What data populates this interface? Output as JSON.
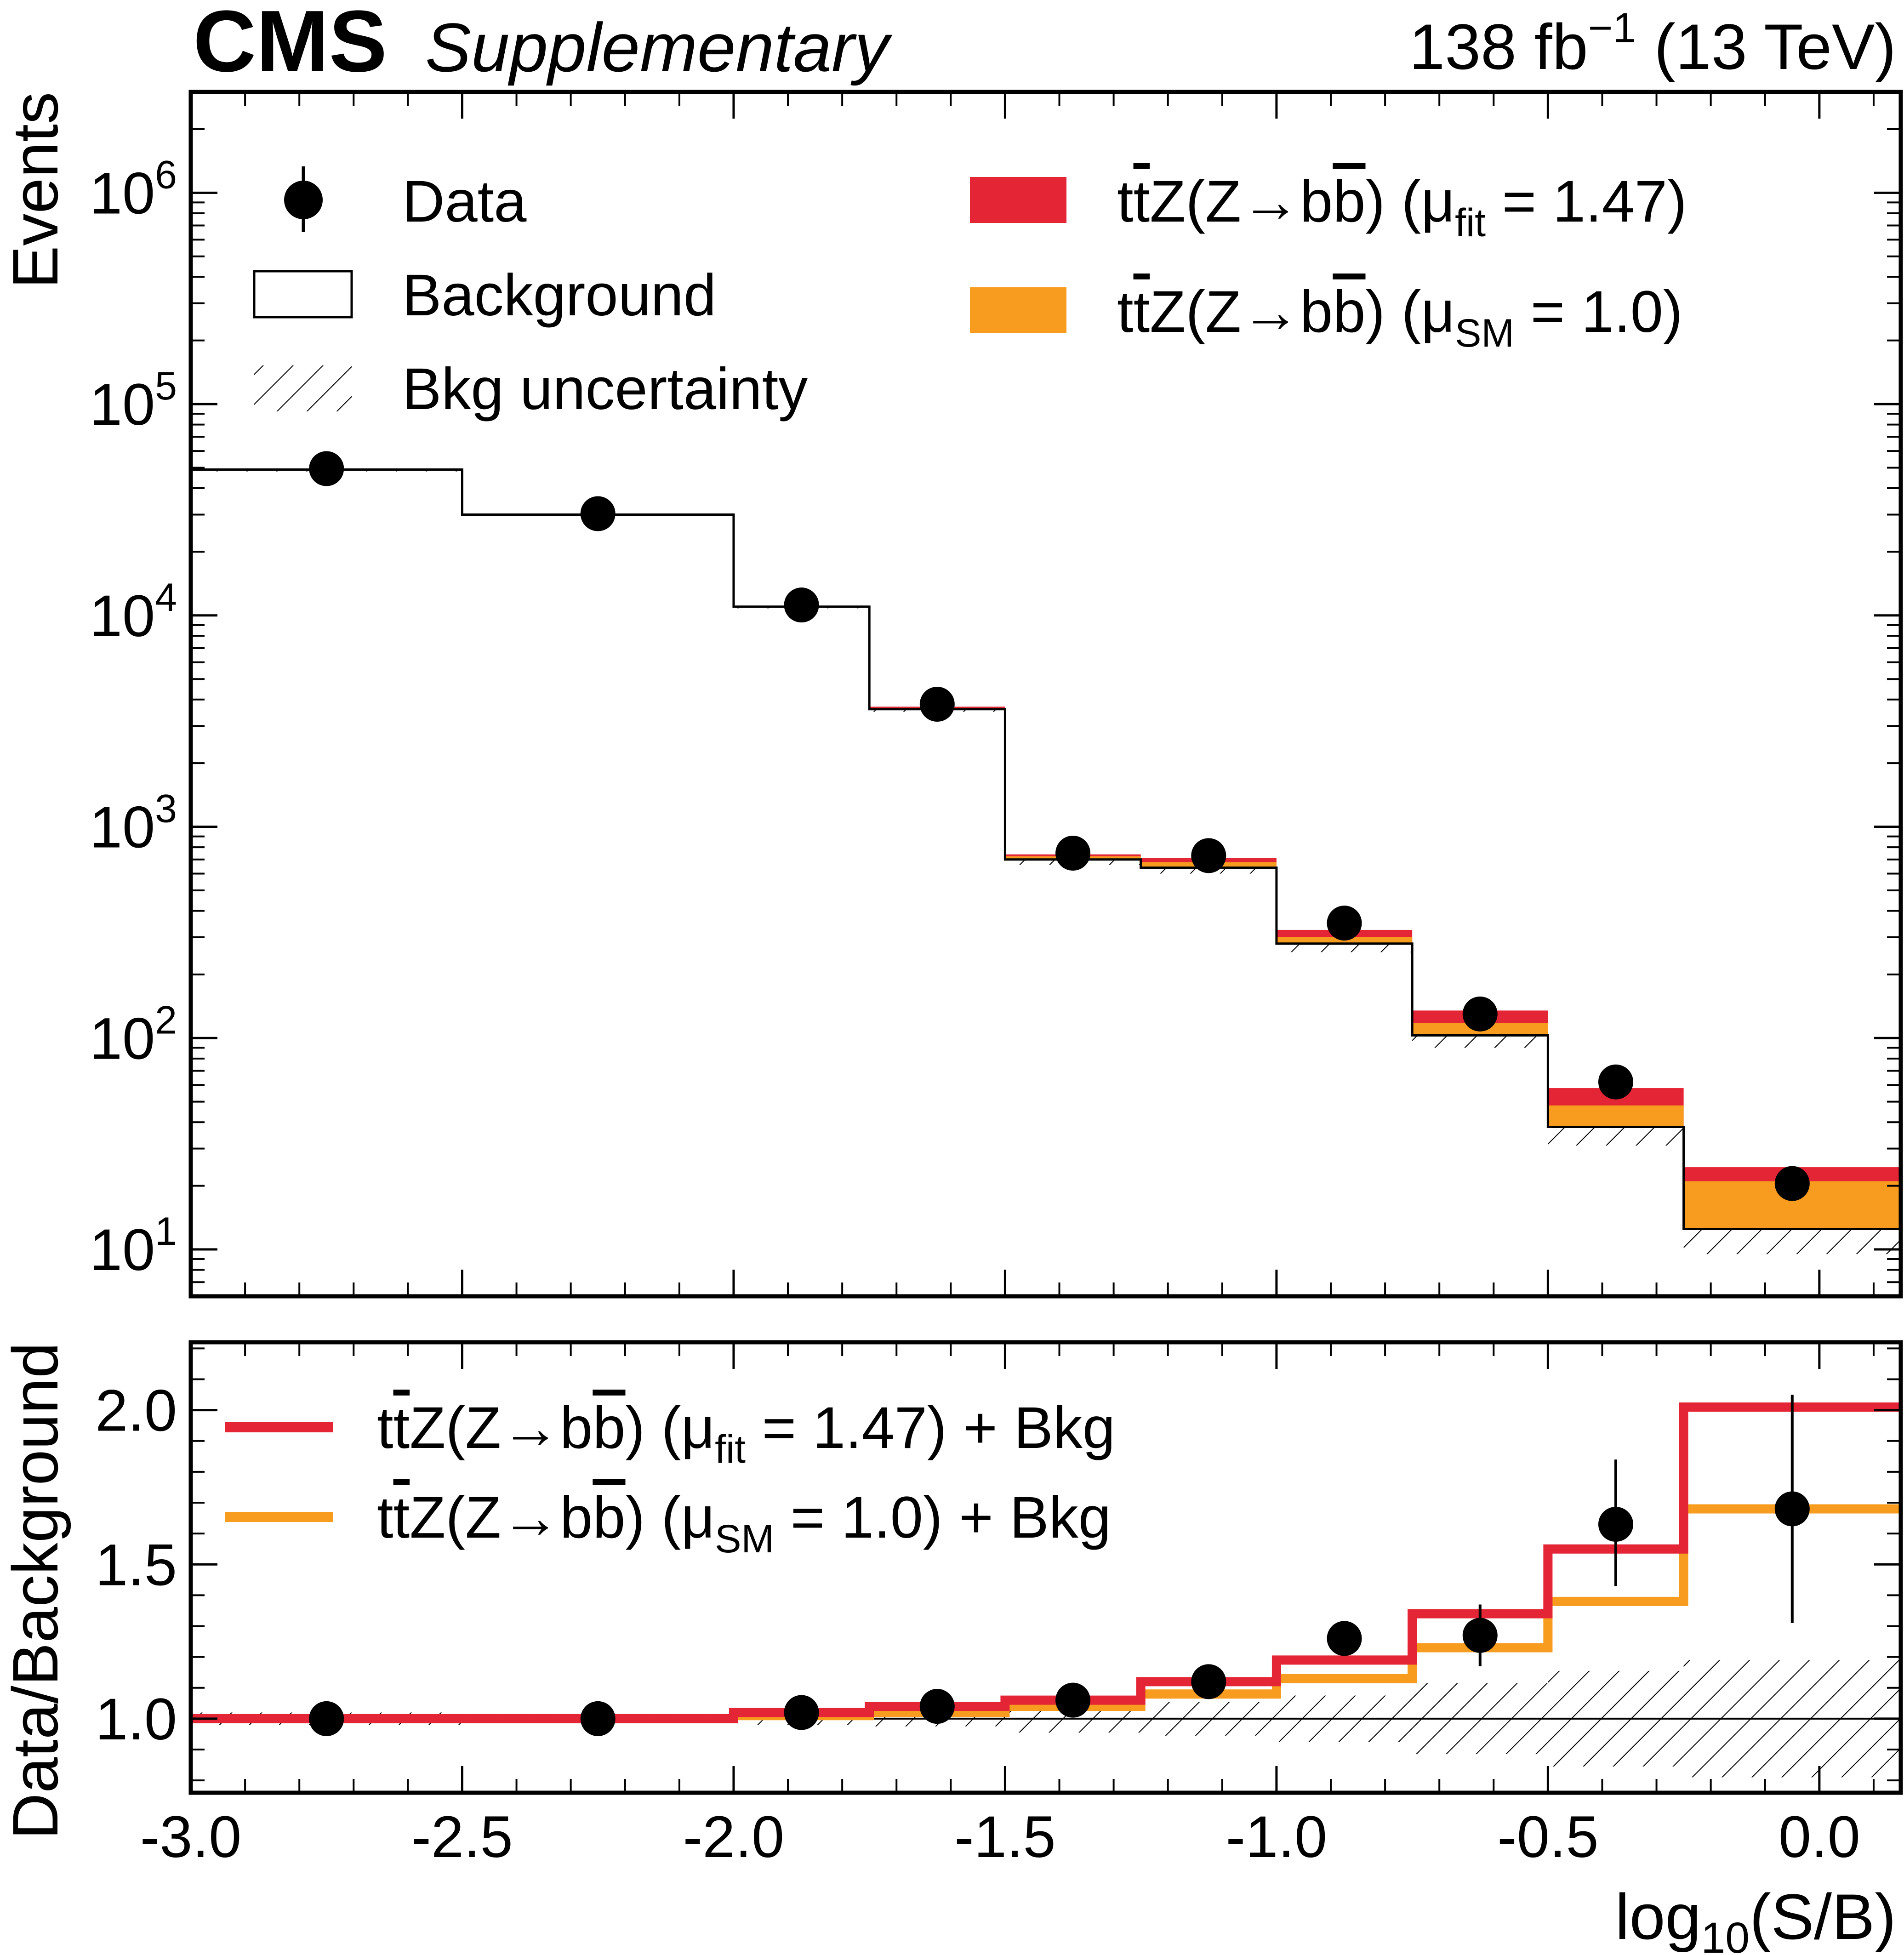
{
  "header": {
    "experiment": "CMS",
    "tag": "Supplementary",
    "lumi_value": "138 fb",
    "lumi_exp": "−1",
    "energy": " (13 TeV)"
  },
  "legend_main": {
    "data": "Data",
    "background": "Background",
    "bkg_unc": "Bkg uncertainty",
    "sig_fit": {
      "lead": "t",
      "tbar": "t",
      "proc": "Z(Z→b",
      "bbar": "b",
      "tail": ") (μ",
      "sub": "fit",
      "val": " = 1.47)"
    },
    "sig_sm": {
      "lead": "t",
      "tbar": "t",
      "proc": "Z(Z→b",
      "bbar": "b",
      "tail": ") (μ",
      "sub": "SM",
      "val": " = 1.0)"
    }
  },
  "legend_ratio": {
    "fit": {
      "lead": "t",
      "tbar": "t",
      "proc": "Z(Z→b",
      "bbar": "b",
      "tail": ") (μ",
      "sub": "fit",
      "val": " = 1.47) + Bkg"
    },
    "sm": {
      "lead": "t",
      "tbar": "t",
      "proc": "Z(Z→b",
      "bbar": "b",
      "tail": ") (μ",
      "sub": "SM",
      "val": " = 1.0) + Bkg"
    }
  },
  "colors": {
    "fit": "#e42536",
    "sm": "#f89c20",
    "axis": "#000000"
  },
  "chart_data": {
    "type": "bar",
    "xlabel": {
      "base": "log",
      "sub": "10",
      "rest": "(S/B)"
    },
    "ylabel_main": "Events",
    "ylabel_ratio": "Data/Background",
    "x_edges": [
      -3.0,
      -2.5,
      -2.0,
      -1.75,
      -1.5,
      -1.25,
      -1.0,
      -0.75,
      -0.5,
      -0.25,
      0.15
    ],
    "xlim": [
      -3.0,
      0.15
    ],
    "x_tick_labels": [
      "-3.0",
      "-2.5",
      "-2.0",
      "-1.5",
      "-1.0",
      "-0.5",
      "0.0"
    ],
    "main": {
      "yscale": "log",
      "ylim": [
        6,
        3000000
      ],
      "y_tick_labels": [
        {
          "base": "10",
          "exp": "1"
        },
        {
          "base": "10",
          "exp": "2"
        },
        {
          "base": "10",
          "exp": "3"
        },
        {
          "base": "10",
          "exp": "4"
        },
        {
          "base": "10",
          "exp": "5"
        },
        {
          "base": "10",
          "exp": "6"
        }
      ],
      "background": [
        49000,
        30000,
        11000,
        3600,
        700,
        640,
        280,
        103,
        38,
        12.5
      ],
      "background_unc_low": [
        48000,
        29500,
        10800,
        3500,
        660,
        600,
        255,
        90,
        31,
        9.5
      ],
      "stack_sm_top": [
        49030,
        30040,
        11050,
        3650,
        725,
        680,
        300,
        118,
        48,
        21
      ],
      "stack_fit_top": [
        49050,
        30060,
        11080,
        3700,
        740,
        710,
        325,
        135,
        58,
        24.5
      ],
      "data": [
        49500,
        30300,
        11200,
        3800,
        750,
        730,
        350,
        130,
        62,
        20.5
      ]
    },
    "ratio": {
      "ylim": [
        0.76,
        2.22
      ],
      "y_ticks": [
        1.0,
        1.5,
        2.0
      ],
      "y_tick_labels": [
        "1.0",
        "1.5",
        "2.0"
      ],
      "fit_plus_bkg": [
        1.0,
        1.0,
        1.02,
        1.04,
        1.06,
        1.12,
        1.19,
        1.34,
        1.55,
        2.01
      ],
      "sm_plus_bkg": [
        1.0,
        1.0,
        1.01,
        1.02,
        1.04,
        1.08,
        1.13,
        1.23,
        1.38,
        1.68
      ],
      "bkg_unc_low": [
        0.98,
        0.985,
        0.98,
        0.975,
        0.955,
        0.945,
        0.925,
        0.885,
        0.845,
        0.81
      ],
      "bkg_unc_high": [
        1.02,
        1.015,
        1.02,
        1.025,
        1.045,
        1.055,
        1.075,
        1.115,
        1.155,
        1.19
      ],
      "data": [
        1.0,
        1.0,
        1.02,
        1.04,
        1.06,
        1.12,
        1.26,
        1.27,
        1.63,
        1.68
      ],
      "data_err_low": [
        0.0,
        0.0,
        0.0,
        0.0,
        0.01,
        0.02,
        0.05,
        0.1,
        0.2,
        0.37
      ],
      "data_err_high": [
        0.0,
        0.0,
        0.0,
        0.0,
        0.01,
        0.02,
        0.05,
        0.1,
        0.21,
        0.37
      ]
    }
  }
}
